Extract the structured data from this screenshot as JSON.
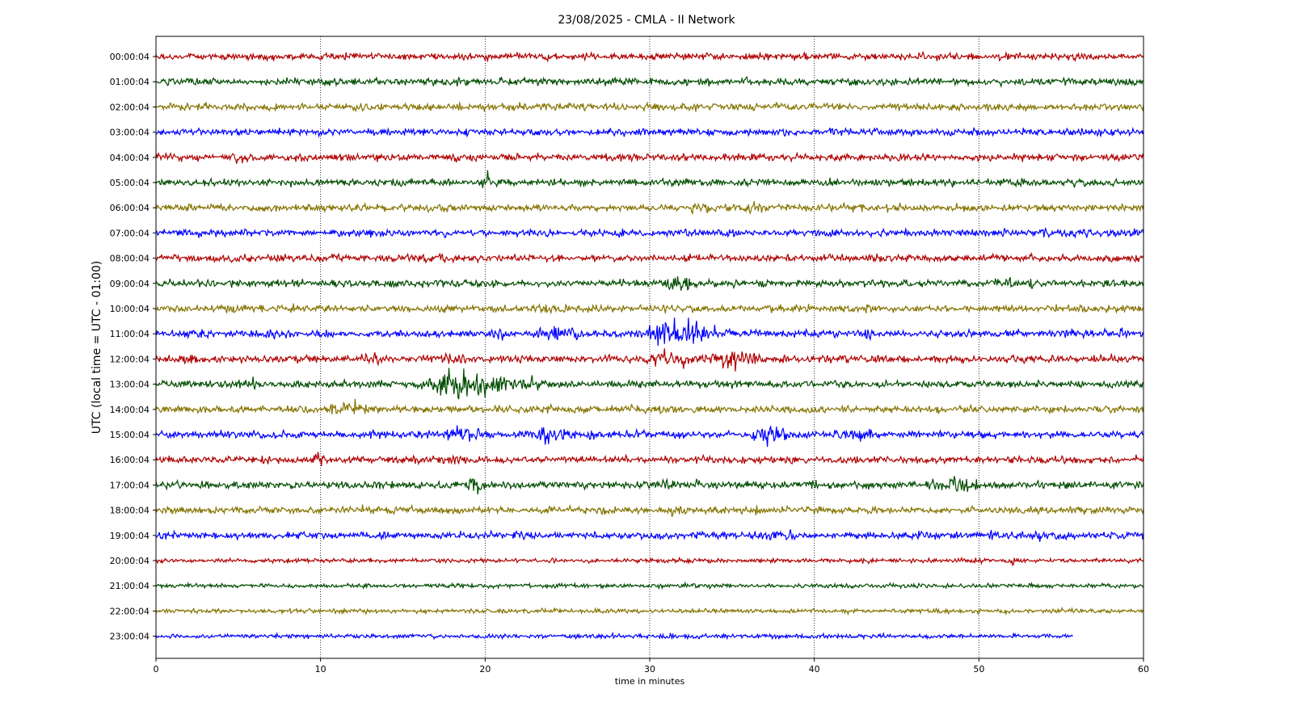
{
  "chart_data": {
    "type": "line",
    "title": "23/08/2025 - CMLA - II Network",
    "xlabel": "time in minutes",
    "ylabel": "UTC (local time = UTC - 01:00)",
    "xlim": [
      0,
      60
    ],
    "xticks": [
      "0",
      "10",
      "20",
      "30",
      "40",
      "50",
      "60"
    ],
    "grid": "vertical dotted lines at x ticks",
    "colors": [
      "#b00000",
      "#004d00",
      "#857300",
      "#0000ff"
    ],
    "rows": [
      {
        "label": "00:00:04",
        "color": "#b00000"
      },
      {
        "label": "01:00:04",
        "color": "#004d00"
      },
      {
        "label": "02:00:04",
        "color": "#857300"
      },
      {
        "label": "03:00:04",
        "color": "#0000ff"
      },
      {
        "label": "04:00:04",
        "color": "#b00000"
      },
      {
        "label": "05:00:04",
        "color": "#004d00"
      },
      {
        "label": "06:00:04",
        "color": "#857300"
      },
      {
        "label": "07:00:04",
        "color": "#0000ff"
      },
      {
        "label": "08:00:04",
        "color": "#b00000"
      },
      {
        "label": "09:00:04",
        "color": "#004d00"
      },
      {
        "label": "10:00:04",
        "color": "#857300"
      },
      {
        "label": "11:00:04",
        "color": "#0000ff"
      },
      {
        "label": "12:00:04",
        "color": "#b00000"
      },
      {
        "label": "13:00:04",
        "color": "#004d00"
      },
      {
        "label": "14:00:04",
        "color": "#857300"
      },
      {
        "label": "15:00:04",
        "color": "#0000ff"
      },
      {
        "label": "16:00:04",
        "color": "#b00000"
      },
      {
        "label": "17:00:04",
        "color": "#004d00"
      },
      {
        "label": "18:00:04",
        "color": "#857300"
      },
      {
        "label": "19:00:04",
        "color": "#0000ff"
      },
      {
        "label": "20:00:04",
        "color": "#b00000"
      },
      {
        "label": "21:00:04",
        "color": "#004d00"
      },
      {
        "label": "22:00:04",
        "color": "#857300"
      },
      {
        "label": "23:00:04",
        "color": "#0000ff"
      }
    ]
  }
}
